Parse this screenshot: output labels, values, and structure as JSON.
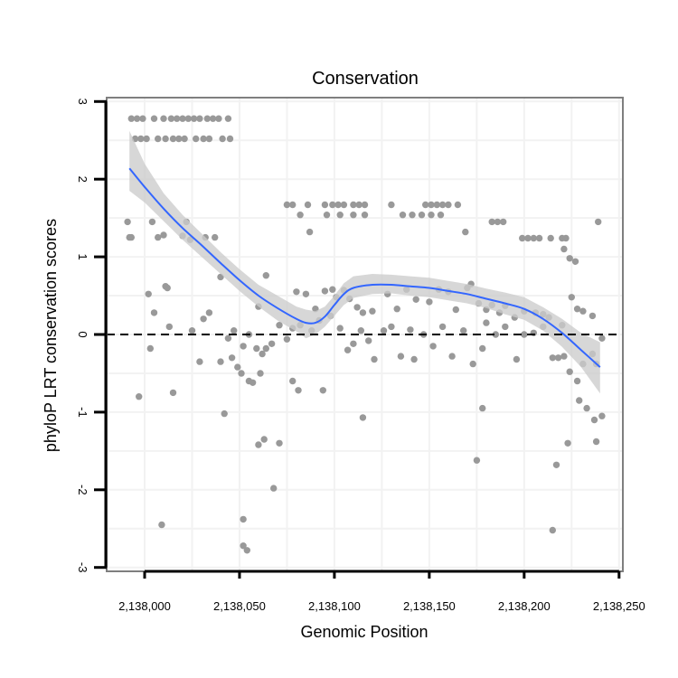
{
  "chart_data": {
    "type": "scatter",
    "title": "Conservation",
    "xlabel": "Genomic Position",
    "ylabel": "phyloP LRT conservation scores",
    "xlim": [
      2137980,
      2138252
    ],
    "ylim": [
      -3.05,
      3.05
    ],
    "x_ticks": [
      2138000,
      2138050,
      2138100,
      2138150,
      2138200,
      2138250
    ],
    "x_tick_labels": [
      "2,138,000",
      "2,138,050",
      "2,138,100",
      "2,138,150",
      "2,138,200",
      "2,138,250"
    ],
    "y_ticks": [
      -3,
      -2,
      -1,
      0,
      1,
      2,
      3
    ],
    "y_tick_labels": [
      "-3",
      "-2",
      "-1",
      "0",
      "1",
      "2",
      "3"
    ],
    "reference_line": {
      "y": 0,
      "style": "dashed"
    },
    "colors": {
      "points": "#999999",
      "smooth": "#3366FF",
      "ribbon": "#CCCCCC",
      "panel_border": "#7F7F7F",
      "grid": "#F2F2F2"
    },
    "points": [
      {
        "x": 2137993,
        "y": 2.78
      },
      {
        "x": 2137996,
        "y": 2.78
      },
      {
        "x": 2137999,
        "y": 2.78
      },
      {
        "x": 2138005,
        "y": 2.78
      },
      {
        "x": 2138010,
        "y": 2.78
      },
      {
        "x": 2138014,
        "y": 2.78
      },
      {
        "x": 2138017,
        "y": 2.78
      },
      {
        "x": 2138020,
        "y": 2.78
      },
      {
        "x": 2138023,
        "y": 2.78
      },
      {
        "x": 2138026,
        "y": 2.78
      },
      {
        "x": 2138029,
        "y": 2.78
      },
      {
        "x": 2138033,
        "y": 2.78
      },
      {
        "x": 2138036,
        "y": 2.78
      },
      {
        "x": 2138039,
        "y": 2.78
      },
      {
        "x": 2138044,
        "y": 2.78
      },
      {
        "x": 2137995,
        "y": 2.52
      },
      {
        "x": 2137998,
        "y": 2.52
      },
      {
        "x": 2138001,
        "y": 2.52
      },
      {
        "x": 2138007,
        "y": 2.52
      },
      {
        "x": 2138011,
        "y": 2.52
      },
      {
        "x": 2138015,
        "y": 2.52
      },
      {
        "x": 2138018,
        "y": 2.52
      },
      {
        "x": 2138021,
        "y": 2.52
      },
      {
        "x": 2138027,
        "y": 2.52
      },
      {
        "x": 2138031,
        "y": 2.52
      },
      {
        "x": 2138034,
        "y": 2.52
      },
      {
        "x": 2138041,
        "y": 2.52
      },
      {
        "x": 2138045,
        "y": 2.52
      },
      {
        "x": 2138075,
        "y": 1.67
      },
      {
        "x": 2138078,
        "y": 1.67
      },
      {
        "x": 2138086,
        "y": 1.67
      },
      {
        "x": 2138095,
        "y": 1.67
      },
      {
        "x": 2138099,
        "y": 1.67
      },
      {
        "x": 2138102,
        "y": 1.67
      },
      {
        "x": 2138105,
        "y": 1.67
      },
      {
        "x": 2138110,
        "y": 1.67
      },
      {
        "x": 2138113,
        "y": 1.67
      },
      {
        "x": 2138116,
        "y": 1.67
      },
      {
        "x": 2138130,
        "y": 1.67
      },
      {
        "x": 2138148,
        "y": 1.67
      },
      {
        "x": 2138151,
        "y": 1.67
      },
      {
        "x": 2138154,
        "y": 1.67
      },
      {
        "x": 2138157,
        "y": 1.67
      },
      {
        "x": 2138160,
        "y": 1.67
      },
      {
        "x": 2138165,
        "y": 1.67
      },
      {
        "x": 2138082,
        "y": 1.54
      },
      {
        "x": 2138096,
        "y": 1.54
      },
      {
        "x": 2138103,
        "y": 1.54
      },
      {
        "x": 2138110,
        "y": 1.54
      },
      {
        "x": 2138116,
        "y": 1.54
      },
      {
        "x": 2138136,
        "y": 1.54
      },
      {
        "x": 2138141,
        "y": 1.54
      },
      {
        "x": 2138146,
        "y": 1.54
      },
      {
        "x": 2138151,
        "y": 1.54
      },
      {
        "x": 2138156,
        "y": 1.54
      },
      {
        "x": 2138183,
        "y": 1.45
      },
      {
        "x": 2138186,
        "y": 1.45
      },
      {
        "x": 2138189,
        "y": 1.45
      },
      {
        "x": 2138199,
        "y": 1.24
      },
      {
        "x": 2138202,
        "y": 1.24
      },
      {
        "x": 2138205,
        "y": 1.24
      },
      {
        "x": 2138208,
        "y": 1.24
      },
      {
        "x": 2138214,
        "y": 1.24
      },
      {
        "x": 2138220,
        "y": 1.24
      },
      {
        "x": 2138222,
        "y": 1.24
      },
      {
        "x": 2137991,
        "y": 1.45
      },
      {
        "x": 2137992,
        "y": 1.25
      },
      {
        "x": 2137993,
        "y": 1.25
      },
      {
        "x": 2138004,
        "y": 1.45
      },
      {
        "x": 2138007,
        "y": 1.25
      },
      {
        "x": 2138010,
        "y": 1.28
      },
      {
        "x": 2138020,
        "y": 1.27
      },
      {
        "x": 2138022,
        "y": 1.45
      },
      {
        "x": 2138024,
        "y": 1.22
      },
      {
        "x": 2138032,
        "y": 1.25
      },
      {
        "x": 2138037,
        "y": 1.25
      },
      {
        "x": 2138087,
        "y": 1.32
      },
      {
        "x": 2138169,
        "y": 1.32
      },
      {
        "x": 2138221,
        "y": 1.1
      },
      {
        "x": 2138224,
        "y": 0.98
      },
      {
        "x": 2138227,
        "y": 0.94
      },
      {
        "x": 2138239,
        "y": 1.45
      },
      {
        "x": 2138011,
        "y": 0.62
      },
      {
        "x": 2138012,
        "y": 0.6
      },
      {
        "x": 2138002,
        "y": 0.52
      },
      {
        "x": 2138005,
        "y": 0.28
      },
      {
        "x": 2138040,
        "y": 0.74
      },
      {
        "x": 2138064,
        "y": 0.76
      },
      {
        "x": 2138060,
        "y": 0.36
      },
      {
        "x": 2138080,
        "y": 0.55
      },
      {
        "x": 2138085,
        "y": 0.52
      },
      {
        "x": 2138090,
        "y": 0.33
      },
      {
        "x": 2138095,
        "y": 0.56
      },
      {
        "x": 2138099,
        "y": 0.58
      },
      {
        "x": 2138101,
        "y": 0.48
      },
      {
        "x": 2138105,
        "y": 0.57
      },
      {
        "x": 2138108,
        "y": 0.46
      },
      {
        "x": 2138112,
        "y": 0.35
      },
      {
        "x": 2138115,
        "y": 0.28
      },
      {
        "x": 2138120,
        "y": 0.3
      },
      {
        "x": 2138128,
        "y": 0.52
      },
      {
        "x": 2138133,
        "y": 0.33
      },
      {
        "x": 2138138,
        "y": 0.58
      },
      {
        "x": 2138143,
        "y": 0.45
      },
      {
        "x": 2138150,
        "y": 0.42
      },
      {
        "x": 2138155,
        "y": 0.58
      },
      {
        "x": 2138160,
        "y": 0.55
      },
      {
        "x": 2138164,
        "y": 0.32
      },
      {
        "x": 2138170,
        "y": 0.6
      },
      {
        "x": 2138172,
        "y": 0.65
      },
      {
        "x": 2138176,
        "y": 0.4
      },
      {
        "x": 2138180,
        "y": 0.32
      },
      {
        "x": 2138183,
        "y": 0.38
      },
      {
        "x": 2138187,
        "y": 0.28
      },
      {
        "x": 2138190,
        "y": 0.37
      },
      {
        "x": 2138195,
        "y": 0.22
      },
      {
        "x": 2138200,
        "y": 0.3
      },
      {
        "x": 2138206,
        "y": 0.28
      },
      {
        "x": 2138210,
        "y": 0.26
      },
      {
        "x": 2138213,
        "y": 0.22
      },
      {
        "x": 2138220,
        "y": 0.12
      },
      {
        "x": 2138225,
        "y": 0.48
      },
      {
        "x": 2138228,
        "y": 0.33
      },
      {
        "x": 2138231,
        "y": 0.3
      },
      {
        "x": 2138236,
        "y": 0.24
      },
      {
        "x": 2138003,
        "y": -0.18
      },
      {
        "x": 2138013,
        "y": 0.1
      },
      {
        "x": 2138025,
        "y": 0.05
      },
      {
        "x": 2138031,
        "y": 0.2
      },
      {
        "x": 2138034,
        "y": 0.28
      },
      {
        "x": 2138044,
        "y": -0.05
      },
      {
        "x": 2138047,
        "y": 0.05
      },
      {
        "x": 2138052,
        "y": -0.15
      },
      {
        "x": 2138055,
        "y": 0.0
      },
      {
        "x": 2138059,
        "y": -0.18
      },
      {
        "x": 2138062,
        "y": -0.25
      },
      {
        "x": 2138067,
        "y": -0.12
      },
      {
        "x": 2138071,
        "y": 0.12
      },
      {
        "x": 2138075,
        "y": -0.06
      },
      {
        "x": 2138078,
        "y": 0.08
      },
      {
        "x": 2138082,
        "y": 0.12
      },
      {
        "x": 2138088,
        "y": 0.05
      },
      {
        "x": 2138092,
        "y": 0.18
      },
      {
        "x": 2138098,
        "y": 0.24
      },
      {
        "x": 2138103,
        "y": 0.08
      },
      {
        "x": 2138107,
        "y": -0.2
      },
      {
        "x": 2138110,
        "y": -0.12
      },
      {
        "x": 2138114,
        "y": 0.05
      },
      {
        "x": 2138118,
        "y": -0.08
      },
      {
        "x": 2138121,
        "y": -0.32
      },
      {
        "x": 2138126,
        "y": 0.05
      },
      {
        "x": 2138130,
        "y": 0.1
      },
      {
        "x": 2138135,
        "y": -0.28
      },
      {
        "x": 2138140,
        "y": 0.06
      },
      {
        "x": 2138142,
        "y": -0.32
      },
      {
        "x": 2138147,
        "y": 0.0
      },
      {
        "x": 2138152,
        "y": -0.15
      },
      {
        "x": 2138157,
        "y": 0.1
      },
      {
        "x": 2138162,
        "y": -0.28
      },
      {
        "x": 2138168,
        "y": 0.05
      },
      {
        "x": 2138173,
        "y": -0.38
      },
      {
        "x": 2138178,
        "y": -0.18
      },
      {
        "x": 2138180,
        "y": 0.15
      },
      {
        "x": 2138185,
        "y": 0.0
      },
      {
        "x": 2138190,
        "y": 0.1
      },
      {
        "x": 2138196,
        "y": -0.32
      },
      {
        "x": 2138200,
        "y": 0.0
      },
      {
        "x": 2138205,
        "y": 0.02
      },
      {
        "x": 2138210,
        "y": 0.1
      },
      {
        "x": 2138215,
        "y": -0.3
      },
      {
        "x": 2138218,
        "y": -0.3
      },
      {
        "x": 2138221,
        "y": -0.28
      },
      {
        "x": 2138224,
        "y": -0.48
      },
      {
        "x": 2138231,
        "y": -0.38
      },
      {
        "x": 2138236,
        "y": -0.25
      },
      {
        "x": 2138238,
        "y": -0.38
      },
      {
        "x": 2138241,
        "y": -0.05
      },
      {
        "x": 2137997,
        "y": -0.8
      },
      {
        "x": 2138015,
        "y": -0.75
      },
      {
        "x": 2138029,
        "y": -0.35
      },
      {
        "x": 2138040,
        "y": -0.35
      },
      {
        "x": 2138046,
        "y": -0.3
      },
      {
        "x": 2138049,
        "y": -0.42
      },
      {
        "x": 2138051,
        "y": -0.5
      },
      {
        "x": 2138055,
        "y": -0.6
      },
      {
        "x": 2138057,
        "y": -0.62
      },
      {
        "x": 2138061,
        "y": -0.5
      },
      {
        "x": 2138064,
        "y": -0.18
      },
      {
        "x": 2138078,
        "y": -0.6
      },
      {
        "x": 2138081,
        "y": -0.72
      },
      {
        "x": 2138094,
        "y": -0.72
      },
      {
        "x": 2138115,
        "y": -1.07
      },
      {
        "x": 2138178,
        "y": -0.95
      },
      {
        "x": 2138228,
        "y": -0.6
      },
      {
        "x": 2138229,
        "y": -0.85
      },
      {
        "x": 2138233,
        "y": -0.95
      },
      {
        "x": 2138237,
        "y": -1.1
      },
      {
        "x": 2138042,
        "y": -1.02
      },
      {
        "x": 2138060,
        "y": -1.42
      },
      {
        "x": 2138063,
        "y": -1.35
      },
      {
        "x": 2138071,
        "y": -1.4
      },
      {
        "x": 2138068,
        "y": -1.98
      },
      {
        "x": 2138175,
        "y": -1.62
      },
      {
        "x": 2138217,
        "y": -1.68
      },
      {
        "x": 2138223,
        "y": -1.4
      },
      {
        "x": 2138238,
        "y": -1.38
      },
      {
        "x": 2138241,
        "y": -1.05
      },
      {
        "x": 2138009,
        "y": -2.45
      },
      {
        "x": 2138052,
        "y": -2.38
      },
      {
        "x": 2138052,
        "y": -2.72
      },
      {
        "x": 2138054,
        "y": -2.78
      },
      {
        "x": 2138215,
        "y": -2.52
      }
    ],
    "smooth_fit": {
      "method": "loess",
      "x": [
        2137992,
        2138000,
        2138010,
        2138020,
        2138030,
        2138040,
        2138050,
        2138060,
        2138070,
        2138080,
        2138085,
        2138090,
        2138095,
        2138100,
        2138105,
        2138110,
        2138120,
        2138130,
        2138140,
        2138150,
        2138160,
        2138170,
        2138180,
        2138190,
        2138200,
        2138210,
        2138220,
        2138230,
        2138240
      ],
      "y": [
        2.14,
        1.9,
        1.62,
        1.37,
        1.15,
        0.92,
        0.7,
        0.5,
        0.34,
        0.2,
        0.15,
        0.15,
        0.23,
        0.38,
        0.52,
        0.6,
        0.64,
        0.64,
        0.62,
        0.6,
        0.56,
        0.52,
        0.46,
        0.4,
        0.33,
        0.2,
        0.02,
        -0.2,
        -0.42
      ],
      "lower": [
        1.85,
        1.7,
        1.46,
        1.22,
        1.0,
        0.78,
        0.56,
        0.36,
        0.18,
        0.04,
        -0.05,
        0.0,
        0.1,
        0.24,
        0.38,
        0.47,
        0.52,
        0.53,
        0.5,
        0.48,
        0.44,
        0.4,
        0.34,
        0.26,
        0.19,
        0.05,
        -0.16,
        -0.42,
        -0.76
      ],
      "upper": [
        2.62,
        2.2,
        1.82,
        1.54,
        1.3,
        1.06,
        0.84,
        0.64,
        0.5,
        0.36,
        0.32,
        0.3,
        0.36,
        0.5,
        0.66,
        0.75,
        0.78,
        0.77,
        0.75,
        0.73,
        0.69,
        0.65,
        0.59,
        0.54,
        0.48,
        0.35,
        0.2,
        0.02,
        -0.1
      ]
    }
  }
}
